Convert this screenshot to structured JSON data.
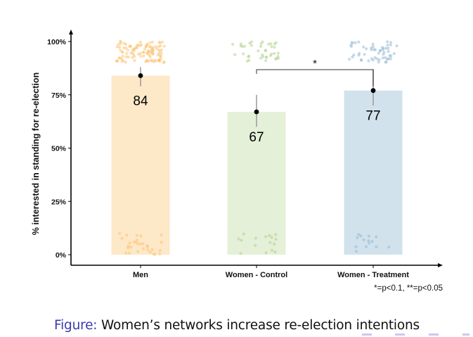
{
  "chart_data": {
    "type": "bar",
    "title": "",
    "xlabel": "",
    "ylabel": "% interested in standing for re-election",
    "ylim": [
      0,
      100
    ],
    "yticks": [
      0,
      25,
      50,
      75,
      100
    ],
    "ytick_labels": [
      "0%",
      "25%",
      "50%",
      "75%",
      "100%"
    ],
    "categories": [
      "Men",
      "Women - Control",
      "Women - Treatment"
    ],
    "values": [
      84,
      67,
      77
    ],
    "value_labels": [
      "84",
      "67",
      "77"
    ],
    "error_bars": [
      {
        "low": 79,
        "high": 88
      },
      {
        "low": 60,
        "high": 75
      },
      {
        "low": 70,
        "high": 87
      }
    ],
    "colors": [
      "#fde8c8",
      "#e5f0d8",
      "#d2e2ec"
    ],
    "point_colors": [
      "#fbbf6a",
      "#a9cf86",
      "#8fb5d2"
    ],
    "significance": {
      "from": "Women - Control",
      "to": "Women - Treatment",
      "label": "*"
    },
    "note": "*=p<0.1, **=p<0.05",
    "grid": false
  },
  "caption": {
    "label": "Figure:",
    "text": "Women’s networks increase re-election intentions"
  },
  "theme": {
    "caption_label_color": "#3b3bb3"
  }
}
